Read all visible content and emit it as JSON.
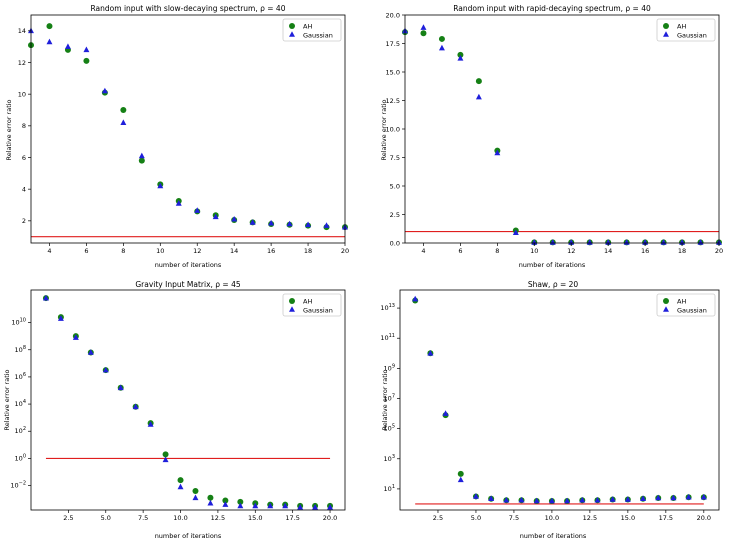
{
  "figure": {
    "colors": {
      "ah": "#158015",
      "gaussian": "#1f1fdb",
      "threshold": "#e01e1e",
      "axes": "#000000"
    },
    "marker_shapes": {
      "ah": "circle",
      "gaussian": "triangle"
    }
  },
  "chart_data": [
    {
      "type": "scatter",
      "title": "Random input with slow-decaying spectrum, ρ = 40",
      "xlabel": "number of iterations",
      "ylabel": "Relative error ratio",
      "xlim": [
        3,
        20
      ],
      "ylim": [
        0.6,
        15
      ],
      "yscale": "linear",
      "xticks": [
        4,
        6,
        8,
        10,
        12,
        14,
        16,
        18,
        20
      ],
      "xtick_labels": [
        "4",
        "6",
        "8",
        "10",
        "12",
        "14",
        "16",
        "18",
        "20"
      ],
      "yticks": [
        2,
        4,
        6,
        8,
        10,
        12,
        14
      ],
      "ytick_labels": [
        "2",
        "4",
        "6",
        "8",
        "10",
        "12",
        "14"
      ],
      "threshold": 1,
      "legend_position": "top-right",
      "grid": false,
      "series": [
        {
          "name": "AH",
          "marker": "circle",
          "x": [
            3,
            4,
            5,
            6,
            7,
            8,
            9,
            10,
            11,
            12,
            13,
            14,
            15,
            16,
            17,
            18,
            19,
            20
          ],
          "y": [
            13.1,
            14.3,
            12.8,
            12.1,
            10.1,
            9.0,
            5.8,
            4.3,
            3.25,
            2.6,
            2.35,
            2.05,
            1.9,
            1.8,
            1.75,
            1.7,
            1.6,
            1.6
          ]
        },
        {
          "name": "Gaussian",
          "marker": "triangle",
          "x": [
            3,
            4,
            5,
            6,
            7,
            8,
            9,
            10,
            11,
            12,
            13,
            14,
            15,
            16,
            17,
            18,
            19,
            20
          ],
          "y": [
            14.0,
            13.3,
            13.0,
            12.8,
            10.2,
            8.2,
            6.1,
            4.2,
            3.1,
            2.65,
            2.25,
            2.1,
            1.9,
            1.85,
            1.8,
            1.75,
            1.7,
            1.6
          ]
        }
      ]
    },
    {
      "type": "scatter",
      "title": "Random input with rapid-decaying spectrum, ρ = 40",
      "xlabel": "number of iterations",
      "ylabel": "Relative error ratio",
      "xlim": [
        3,
        20
      ],
      "ylim": [
        0,
        20
      ],
      "yscale": "linear",
      "xticks": [
        4,
        6,
        8,
        10,
        12,
        14,
        16,
        18,
        20
      ],
      "xtick_labels": [
        "4",
        "6",
        "8",
        "10",
        "12",
        "14",
        "16",
        "18",
        "20"
      ],
      "yticks": [
        0,
        2.5,
        5,
        7.5,
        10,
        12.5,
        15,
        17.5,
        20
      ],
      "ytick_labels": [
        "0.0",
        "2.5",
        "5.0",
        "7.5",
        "10.0",
        "12.5",
        "15.0",
        "17.5",
        "20.0"
      ],
      "threshold": 1,
      "legend_position": "top-right",
      "grid": false,
      "series": [
        {
          "name": "AH",
          "marker": "circle",
          "x": [
            3,
            4,
            5,
            6,
            7,
            8,
            9,
            10,
            11,
            12,
            13,
            14,
            15,
            16,
            17,
            18,
            19,
            20
          ],
          "y": [
            18.5,
            18.4,
            17.9,
            16.5,
            14.2,
            8.1,
            1.1,
            0.05,
            0.05,
            0.05,
            0.05,
            0.05,
            0.05,
            0.05,
            0.05,
            0.05,
            0.05,
            0.05
          ]
        },
        {
          "name": "Gaussian",
          "marker": "triangle",
          "x": [
            3,
            4,
            5,
            6,
            7,
            8,
            9,
            10,
            11,
            12,
            13,
            14,
            15,
            16,
            17,
            18,
            19,
            20
          ],
          "y": [
            18.6,
            18.9,
            17.1,
            16.2,
            12.8,
            7.9,
            0.9,
            0.05,
            0.05,
            0.05,
            0.05,
            0.05,
            0.05,
            0.05,
            0.05,
            0.05,
            0.05,
            0.05
          ]
        }
      ]
    },
    {
      "type": "scatter",
      "title": "Gravity Input Matrix, ρ = 45",
      "xlabel": "number of iterations",
      "ylabel": "Relative error ratio",
      "xlim": [
        0,
        21
      ],
      "ylim_log10": [
        -3.8,
        12.4
      ],
      "yscale": "log",
      "xticks": [
        2.5,
        5,
        7.5,
        10,
        12.5,
        15,
        17.5,
        20
      ],
      "xtick_labels": [
        "2.5",
        "5.0",
        "7.5",
        "10.0",
        "12.5",
        "15.0",
        "17.5",
        "20.0"
      ],
      "ytick_exponents": [
        -2,
        0,
        2,
        4,
        6,
        8,
        10
      ],
      "ytick_base": "10",
      "threshold": 1,
      "threshold_xrange": [
        1,
        20
      ],
      "legend_position": "top-right",
      "grid": false,
      "series": [
        {
          "name": "AH",
          "marker": "circle",
          "x": [
            1,
            2,
            3,
            4,
            5,
            6,
            7,
            8,
            9,
            10,
            11,
            12,
            13,
            14,
            15,
            16,
            17,
            18,
            19,
            20
          ],
          "y_log10": [
            11.8,
            10.4,
            9.0,
            7.8,
            6.5,
            5.2,
            3.8,
            2.6,
            0.3,
            -1.6,
            -2.4,
            -2.9,
            -3.1,
            -3.2,
            -3.3,
            -3.4,
            -3.4,
            -3.5,
            -3.5,
            -3.5
          ]
        },
        {
          "name": "Gaussian",
          "marker": "triangle",
          "x": [
            1,
            2,
            3,
            4,
            5,
            6,
            7,
            8,
            9,
            10,
            11,
            12,
            13,
            14,
            15,
            16,
            17,
            18,
            19,
            20
          ],
          "y_log10": [
            11.8,
            10.3,
            8.9,
            7.8,
            6.5,
            5.2,
            3.8,
            2.5,
            -0.1,
            -2.1,
            -2.9,
            -3.3,
            -3.4,
            -3.5,
            -3.5,
            -3.5,
            -3.5,
            -3.6,
            -3.6,
            -3.6
          ]
        }
      ]
    },
    {
      "type": "scatter",
      "title": "Shaw, ρ = 20",
      "xlabel": "number of iterations",
      "ylabel": "Relative error ratio",
      "xlim": [
        0,
        21
      ],
      "ylim_log10": [
        -0.4,
        14.2
      ],
      "yscale": "log",
      "xticks": [
        2.5,
        5,
        7.5,
        10,
        12.5,
        15,
        17.5,
        20
      ],
      "xtick_labels": [
        "2.5",
        "5.0",
        "7.5",
        "10.0",
        "12.5",
        "15.0",
        "17.5",
        "20.0"
      ],
      "ytick_exponents": [
        1,
        3,
        5,
        7,
        9,
        11,
        13
      ],
      "ytick_base": "10",
      "threshold": 1,
      "threshold_xrange": [
        1,
        20
      ],
      "legend_position": "top-right",
      "grid": false,
      "series": [
        {
          "name": "AH",
          "marker": "circle",
          "x": [
            1,
            2,
            3,
            4,
            5,
            6,
            7,
            8,
            9,
            10,
            11,
            12,
            13,
            14,
            15,
            16,
            17,
            18,
            19,
            20
          ],
          "y_log10": [
            13.5,
            10.0,
            5.9,
            2.0,
            0.5,
            0.35,
            0.25,
            0.25,
            0.2,
            0.2,
            0.2,
            0.25,
            0.25,
            0.3,
            0.3,
            0.35,
            0.4,
            0.4,
            0.45,
            0.45
          ]
        },
        {
          "name": "Gaussian",
          "marker": "triangle",
          "x": [
            1,
            2,
            3,
            4,
            5,
            6,
            7,
            8,
            9,
            10,
            11,
            12,
            13,
            14,
            15,
            16,
            17,
            18,
            19,
            20
          ],
          "y_log10": [
            13.6,
            10.0,
            6.0,
            1.6,
            0.5,
            0.35,
            0.25,
            0.25,
            0.2,
            0.2,
            0.2,
            0.25,
            0.25,
            0.3,
            0.3,
            0.35,
            0.4,
            0.4,
            0.45,
            0.45
          ]
        }
      ]
    }
  ]
}
